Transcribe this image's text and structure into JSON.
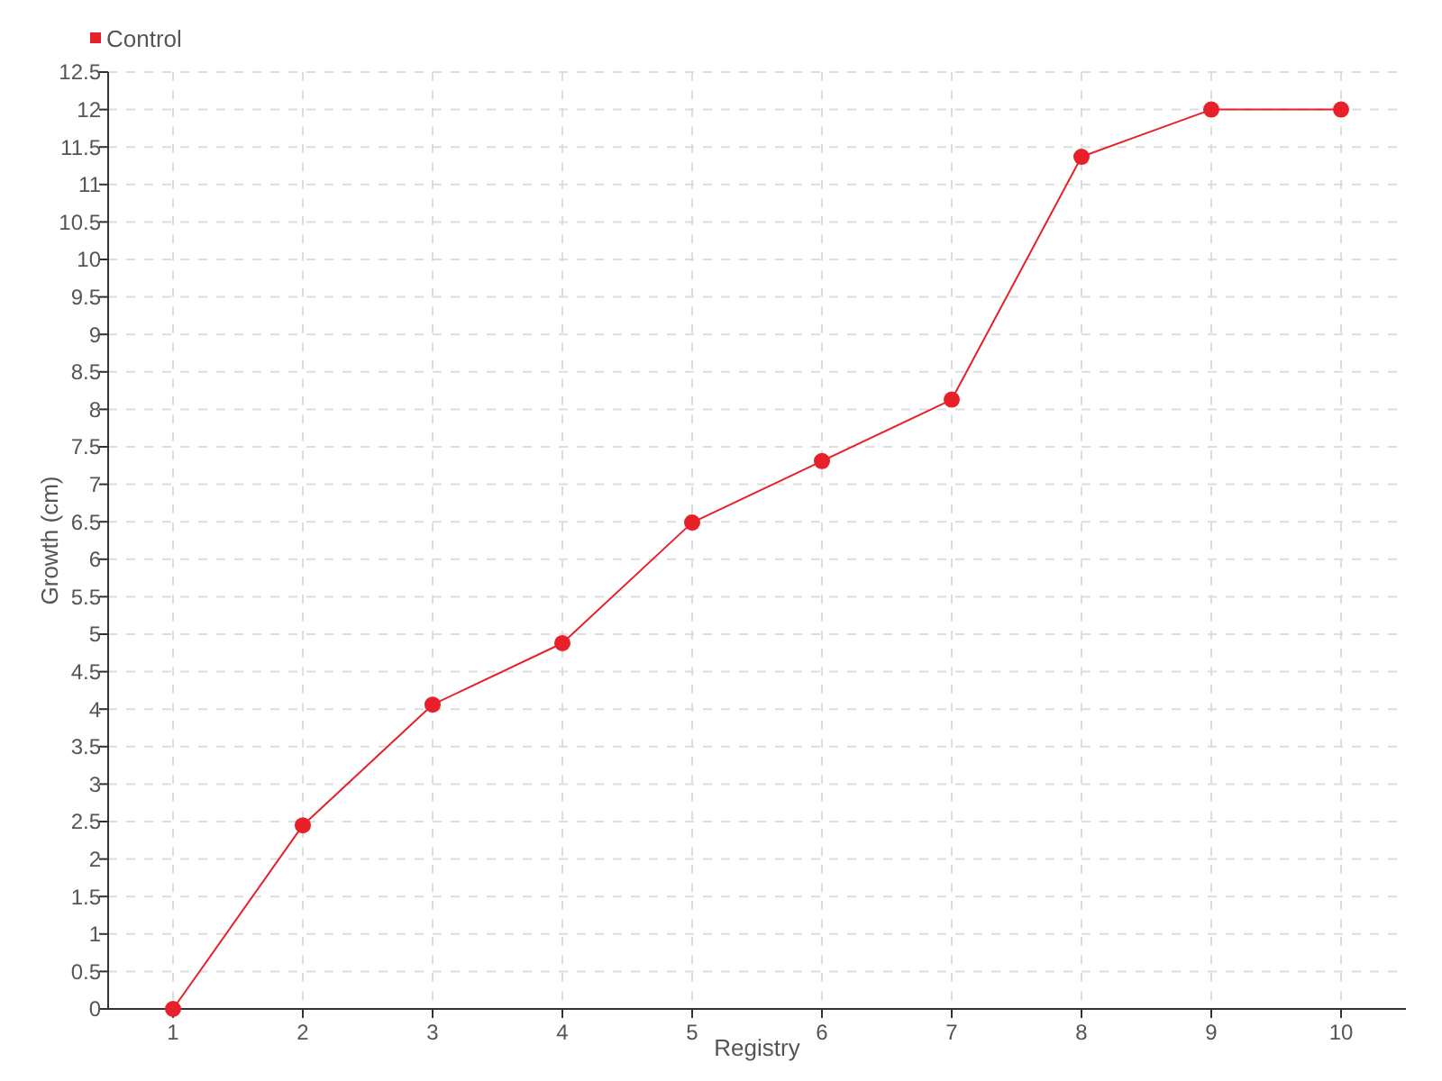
{
  "chart_data": {
    "type": "line",
    "xlabel": "Registry",
    "ylabel": "Growth (cm)",
    "categories": [
      "1",
      "2",
      "3",
      "4",
      "5",
      "6",
      "7",
      "8",
      "9",
      "10"
    ],
    "series": [
      {
        "name": "Control",
        "color": "#e8202a",
        "values": [
          0,
          2.45,
          4.06,
          4.88,
          6.49,
          7.31,
          8.13,
          11.37,
          12,
          12
        ]
      }
    ],
    "ylim": [
      0,
      12.5
    ],
    "yticks": [
      0,
      0.5,
      1,
      1.5,
      2,
      2.5,
      3,
      3.5,
      4,
      4.5,
      5,
      5.5,
      6,
      6.5,
      7,
      7.5,
      8,
      8.5,
      9,
      9.5,
      10,
      10.5,
      11,
      11.5,
      12,
      12.5
    ],
    "grid": true,
    "legend": "top left",
    "marker": "circle",
    "line_style": "solid"
  }
}
